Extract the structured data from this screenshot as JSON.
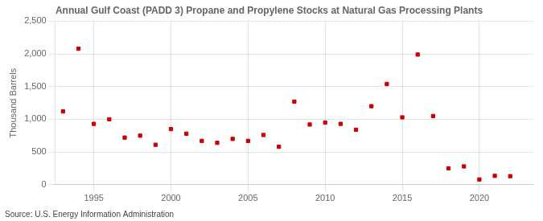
{
  "chart_data": {
    "type": "scatter",
    "title": "Annual Gulf Coast (PADD 3) Propane and Propylene Stocks at Natural Gas Processing Plants",
    "ylabel": "Thousand Barrels",
    "source": "Source: U.S. Energy Information Administration",
    "color": "#cc0000",
    "marker": "square",
    "grid": true,
    "xlim": [
      1992.5,
      2023.5
    ],
    "xticks": [
      1995,
      2000,
      2005,
      2010,
      2015,
      2020
    ],
    "ylim": [
      0,
      2500
    ],
    "yticks": [
      0,
      500,
      {
        "value": 1000,
        "label": "1,000"
      },
      {
        "value": 1500,
        "label": "1,500"
      },
      {
        "value": 2000,
        "label": "2,000"
      },
      {
        "value": 2500,
        "label": "2,500"
      }
    ],
    "x": [
      1993,
      1994,
      1995,
      1996,
      1997,
      1998,
      1999,
      2000,
      2001,
      2002,
      2003,
      2004,
      2005,
      2006,
      2007,
      2008,
      2009,
      2010,
      2011,
      2012,
      2013,
      2014,
      2015,
      2016,
      2017,
      2018,
      2019,
      2020,
      2021,
      2022
    ],
    "values": [
      1120,
      2080,
      930,
      1000,
      720,
      750,
      610,
      850,
      780,
      670,
      640,
      700,
      670,
      760,
      580,
      1270,
      920,
      950,
      930,
      840,
      1200,
      1540,
      1030,
      1990,
      1050,
      250,
      280,
      80,
      135,
      130
    ]
  }
}
